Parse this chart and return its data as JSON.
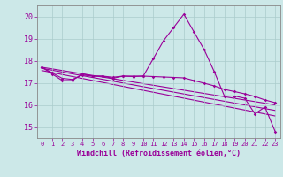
{
  "xlabel": "Windchill (Refroidissement éolien,°C)",
  "background_color": "#cce8e8",
  "grid_color": "#aacccc",
  "line_color": "#990099",
  "spine_color": "#888888",
  "xlim": [
    -0.5,
    23.5
  ],
  "ylim": [
    14.5,
    20.5
  ],
  "yticks": [
    15,
    16,
    17,
    18,
    19,
    20
  ],
  "xticks": [
    0,
    1,
    2,
    3,
    4,
    5,
    6,
    7,
    8,
    9,
    10,
    11,
    12,
    13,
    14,
    15,
    16,
    17,
    18,
    19,
    20,
    21,
    22,
    23
  ],
  "series1_x": [
    0,
    1,
    2,
    3,
    4,
    5,
    6,
    7,
    8,
    9,
    10,
    11,
    12,
    13,
    14,
    15,
    16,
    17,
    18,
    19,
    20,
    21,
    22,
    23
  ],
  "series1_y": [
    17.7,
    17.4,
    17.1,
    17.1,
    17.4,
    17.3,
    17.3,
    17.2,
    17.3,
    17.3,
    17.3,
    18.1,
    18.9,
    19.5,
    20.1,
    19.3,
    18.5,
    17.5,
    16.4,
    16.4,
    16.3,
    15.6,
    15.9,
    14.8
  ],
  "series2_x": [
    0,
    1,
    2,
    3,
    4,
    5,
    6,
    7,
    8,
    9,
    10,
    11,
    12,
    13,
    14,
    15,
    16,
    17,
    18,
    19,
    20,
    21,
    22,
    23
  ],
  "series2_y": [
    17.7,
    17.45,
    17.2,
    17.15,
    17.35,
    17.3,
    17.3,
    17.25,
    17.3,
    17.28,
    17.3,
    17.28,
    17.26,
    17.24,
    17.22,
    17.1,
    16.98,
    16.86,
    16.7,
    16.6,
    16.5,
    16.38,
    16.22,
    16.1
  ],
  "series3_x": [
    0,
    23
  ],
  "series3_y": [
    17.7,
    16.0
  ],
  "series4_x": [
    0,
    23
  ],
  "series4_y": [
    17.65,
    15.75
  ],
  "series5_x": [
    0,
    23
  ],
  "series5_y": [
    17.55,
    15.5
  ]
}
